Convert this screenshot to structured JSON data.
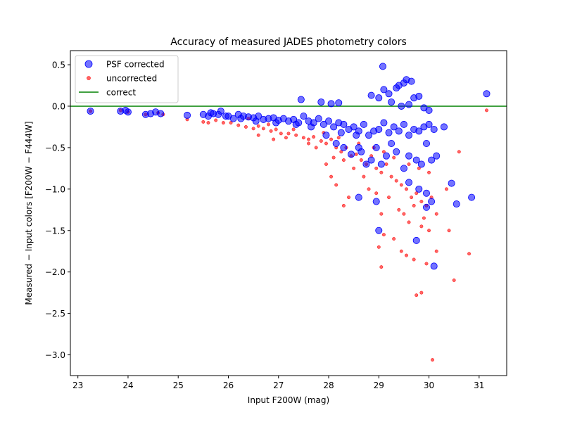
{
  "chart_data": {
    "type": "scatter",
    "title": "Accuracy of measured JADES photometry colors",
    "xlabel": "Input  F200W  (mag)",
    "ylabel": "Measured − Input colors  [F200W − F444W]",
    "xlim": [
      22.85,
      31.55
    ],
    "ylim": [
      -3.25,
      0.67
    ],
    "xticks": [
      23,
      24,
      25,
      26,
      27,
      28,
      29,
      30,
      31
    ],
    "xtick_labels": [
      "23",
      "24",
      "25",
      "26",
      "27",
      "28",
      "29",
      "30",
      "31"
    ],
    "yticks": [
      0.5,
      0.0,
      -0.5,
      -1.0,
      -1.5,
      -2.0,
      -2.5,
      -3.0
    ],
    "ytick_labels": [
      "0.5",
      "0.0",
      "−0.5",
      "−1.0",
      "−1.5",
      "−2.0",
      "−2.5",
      "−3.0"
    ],
    "grid": false,
    "legend_position": "top-left",
    "reference_line": {
      "name": "correct",
      "y": 0.0,
      "color": "#008000"
    },
    "series": [
      {
        "name": "uncorrected",
        "color": "#ff0000",
        "points": [
          [
            23.25,
            -0.06
          ],
          [
            23.85,
            -0.05
          ],
          [
            24.0,
            -0.07
          ],
          [
            24.35,
            -0.1
          ],
          [
            24.6,
            -0.08
          ],
          [
            24.7,
            -0.1
          ],
          [
            25.18,
            -0.16
          ],
          [
            25.5,
            -0.19
          ],
          [
            25.6,
            -0.2
          ],
          [
            25.75,
            -0.17
          ],
          [
            25.9,
            -0.2
          ],
          [
            26.05,
            -0.2
          ],
          [
            26.2,
            -0.23
          ],
          [
            26.35,
            -0.25
          ],
          [
            26.5,
            -0.27
          ],
          [
            26.6,
            -0.24
          ],
          [
            26.7,
            -0.27
          ],
          [
            26.85,
            -0.3
          ],
          [
            26.95,
            -0.28
          ],
          [
            27.05,
            -0.33
          ],
          [
            27.2,
            -0.33
          ],
          [
            27.35,
            -0.35
          ],
          [
            27.5,
            -0.38
          ],
          [
            27.6,
            -0.4
          ],
          [
            27.7,
            -0.37
          ],
          [
            27.85,
            -0.42
          ],
          [
            27.95,
            -0.45
          ],
          [
            28.05,
            -0.4
          ],
          [
            28.15,
            -0.5
          ],
          [
            28.25,
            -0.55
          ],
          [
            28.35,
            -0.5
          ],
          [
            28.45,
            -0.6
          ],
          [
            28.55,
            -0.58
          ],
          [
            28.65,
            -0.65
          ],
          [
            28.75,
            -0.7
          ],
          [
            28.85,
            -0.6
          ],
          [
            28.95,
            -0.75
          ],
          [
            29.05,
            -0.8
          ],
          [
            29.15,
            -0.7
          ],
          [
            29.25,
            -0.85
          ],
          [
            29.35,
            -0.9
          ],
          [
            29.45,
            -0.95
          ],
          [
            29.55,
            -1.0
          ],
          [
            29.65,
            -1.1
          ],
          [
            29.75,
            -1.05
          ],
          [
            29.85,
            -1.15
          ],
          [
            29.95,
            -1.2
          ],
          [
            30.05,
            -1.1
          ],
          [
            30.15,
            -1.3
          ],
          [
            26.4,
            -0.15
          ],
          [
            26.8,
            -0.22
          ],
          [
            27.3,
            -0.28
          ],
          [
            27.9,
            -0.32
          ],
          [
            28.2,
            -0.38
          ],
          [
            28.6,
            -0.45
          ],
          [
            28.9,
            -0.5
          ],
          [
            29.1,
            -0.55
          ],
          [
            29.3,
            -0.62
          ],
          [
            29.6,
            -0.7
          ],
          [
            29.8,
            -0.75
          ],
          [
            30.0,
            -0.8
          ],
          [
            28.3,
            -0.65
          ],
          [
            28.5,
            -0.75
          ],
          [
            28.7,
            -0.85
          ],
          [
            28.8,
            -1.0
          ],
          [
            28.4,
            -1.1
          ],
          [
            28.3,
            -1.2
          ],
          [
            28.95,
            -1.05
          ],
          [
            29.05,
            -1.3
          ],
          [
            29.2,
            -1.1
          ],
          [
            29.4,
            -1.25
          ],
          [
            29.5,
            -1.3
          ],
          [
            29.6,
            -1.4
          ],
          [
            29.7,
            -1.2
          ],
          [
            29.9,
            -1.35
          ],
          [
            30.0,
            -1.5
          ],
          [
            29.85,
            -1.45
          ],
          [
            29.0,
            -1.7
          ],
          [
            29.1,
            -1.55
          ],
          [
            29.3,
            -1.6
          ],
          [
            29.45,
            -1.75
          ],
          [
            29.55,
            -1.8
          ],
          [
            29.7,
            -1.85
          ],
          [
            29.95,
            -1.9
          ],
          [
            30.15,
            -1.75
          ],
          [
            30.4,
            -1.5
          ],
          [
            30.5,
            -2.1
          ],
          [
            30.8,
            -1.78
          ],
          [
            29.05,
            -1.94
          ],
          [
            29.75,
            -2.28
          ],
          [
            29.85,
            -2.25
          ],
          [
            30.07,
            -3.06
          ],
          [
            31.15,
            -0.05
          ],
          [
            30.35,
            -1.0
          ],
          [
            30.6,
            -0.55
          ],
          [
            28.1,
            -0.62
          ],
          [
            27.75,
            -0.5
          ],
          [
            27.6,
            -0.45
          ],
          [
            27.15,
            -0.38
          ],
          [
            26.9,
            -0.4
          ],
          [
            26.6,
            -0.35
          ],
          [
            27.95,
            -0.7
          ],
          [
            28.05,
            -0.85
          ],
          [
            28.15,
            -0.95
          ]
        ]
      },
      {
        "name": "PSF corrected",
        "color": "#0000ff",
        "points": [
          [
            23.25,
            -0.06
          ],
          [
            23.85,
            -0.06
          ],
          [
            23.95,
            -0.05
          ],
          [
            24.0,
            -0.07
          ],
          [
            24.35,
            -0.1
          ],
          [
            24.45,
            -0.09
          ],
          [
            24.55,
            -0.07
          ],
          [
            24.65,
            -0.09
          ],
          [
            25.18,
            -0.11
          ],
          [
            25.5,
            -0.1
          ],
          [
            25.6,
            -0.12
          ],
          [
            25.7,
            -0.09
          ],
          [
            25.8,
            -0.1
          ],
          [
            25.95,
            -0.12
          ],
          [
            26.1,
            -0.15
          ],
          [
            26.2,
            -0.1
          ],
          [
            26.3,
            -0.12
          ],
          [
            26.4,
            -0.13
          ],
          [
            26.5,
            -0.14
          ],
          [
            26.6,
            -0.12
          ],
          [
            26.7,
            -0.16
          ],
          [
            26.8,
            -0.15
          ],
          [
            26.9,
            -0.14
          ],
          [
            27.0,
            -0.17
          ],
          [
            27.1,
            -0.15
          ],
          [
            27.2,
            -0.18
          ],
          [
            27.3,
            -0.16
          ],
          [
            27.4,
            -0.2
          ],
          [
            27.5,
            -0.12
          ],
          [
            27.6,
            -0.18
          ],
          [
            27.7,
            -0.2
          ],
          [
            27.8,
            -0.15
          ],
          [
            27.9,
            -0.22
          ],
          [
            28.0,
            -0.18
          ],
          [
            28.1,
            -0.25
          ],
          [
            28.2,
            -0.2
          ],
          [
            28.3,
            -0.22
          ],
          [
            28.4,
            -0.28
          ],
          [
            28.5,
            -0.25
          ],
          [
            28.6,
            -0.3
          ],
          [
            28.7,
            -0.22
          ],
          [
            28.8,
            -0.35
          ],
          [
            28.9,
            -0.3
          ],
          [
            29.0,
            -0.28
          ],
          [
            29.1,
            -0.2
          ],
          [
            29.2,
            -0.32
          ],
          [
            29.3,
            -0.25
          ],
          [
            29.4,
            -0.3
          ],
          [
            29.5,
            -0.22
          ],
          [
            29.6,
            -0.35
          ],
          [
            29.7,
            -0.28
          ],
          [
            29.8,
            -0.3
          ],
          [
            29.9,
            -0.25
          ],
          [
            30.0,
            -0.22
          ],
          [
            30.1,
            -0.28
          ],
          [
            27.45,
            0.08
          ],
          [
            27.85,
            0.05
          ],
          [
            28.05,
            0.03
          ],
          [
            28.2,
            0.04
          ],
          [
            28.85,
            0.13
          ],
          [
            29.0,
            0.1
          ],
          [
            29.08,
            0.48
          ],
          [
            29.1,
            0.2
          ],
          [
            29.2,
            0.15
          ],
          [
            29.25,
            0.05
          ],
          [
            29.35,
            0.22
          ],
          [
            29.4,
            0.25
          ],
          [
            29.5,
            0.28
          ],
          [
            29.55,
            0.32
          ],
          [
            29.65,
            0.3
          ],
          [
            29.7,
            0.1
          ],
          [
            29.8,
            0.12
          ],
          [
            29.9,
            -0.02
          ],
          [
            30.0,
            -0.05
          ],
          [
            29.45,
            0.0
          ],
          [
            29.6,
            0.02
          ],
          [
            28.6,
            -0.5
          ],
          [
            28.65,
            -0.55
          ],
          [
            28.75,
            -0.7
          ],
          [
            28.85,
            -0.65
          ],
          [
            28.95,
            -0.5
          ],
          [
            29.05,
            -0.7
          ],
          [
            29.15,
            -0.6
          ],
          [
            29.25,
            -0.45
          ],
          [
            29.35,
            -0.55
          ],
          [
            29.5,
            -0.75
          ],
          [
            29.6,
            -0.6
          ],
          [
            29.75,
            -0.65
          ],
          [
            29.85,
            -0.7
          ],
          [
            29.95,
            -0.45
          ],
          [
            30.05,
            -0.65
          ],
          [
            30.15,
            -0.6
          ],
          [
            29.6,
            -0.92
          ],
          [
            29.8,
            -1.0
          ],
          [
            29.95,
            -1.05
          ],
          [
            30.05,
            -1.15
          ],
          [
            29.95,
            -1.22
          ],
          [
            29.75,
            -1.62
          ],
          [
            29.0,
            -1.5
          ],
          [
            28.95,
            -1.15
          ],
          [
            28.6,
            -1.1
          ],
          [
            30.1,
            -1.93
          ],
          [
            30.3,
            -0.25
          ],
          [
            30.45,
            -0.93
          ],
          [
            30.55,
            -1.18
          ],
          [
            30.85,
            -1.1
          ],
          [
            31.15,
            0.15
          ],
          [
            28.45,
            -0.58
          ],
          [
            28.3,
            -0.5
          ],
          [
            28.15,
            -0.45
          ],
          [
            27.95,
            -0.35
          ],
          [
            28.55,
            -0.35
          ],
          [
            28.25,
            -0.32
          ],
          [
            27.65,
            -0.25
          ],
          [
            27.35,
            -0.22
          ],
          [
            26.95,
            -0.2
          ],
          [
            26.55,
            -0.18
          ],
          [
            26.25,
            -0.15
          ],
          [
            26.0,
            -0.12
          ],
          [
            25.85,
            -0.06
          ],
          [
            25.65,
            -0.08
          ]
        ]
      }
    ]
  },
  "legend": {
    "entries": [
      "PSF corrected",
      "uncorrected",
      "correct"
    ]
  }
}
